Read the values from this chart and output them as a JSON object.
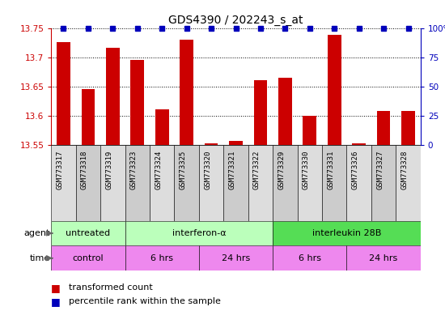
{
  "title": "GDS4390 / 202243_s_at",
  "samples": [
    "GSM773317",
    "GSM773318",
    "GSM773319",
    "GSM773323",
    "GSM773324",
    "GSM773325",
    "GSM773320",
    "GSM773321",
    "GSM773322",
    "GSM773329",
    "GSM773330",
    "GSM773331",
    "GSM773326",
    "GSM773327",
    "GSM773328"
  ],
  "red_values": [
    13.726,
    13.645,
    13.716,
    13.695,
    13.61,
    13.73,
    13.552,
    13.557,
    13.66,
    13.665,
    13.6,
    13.738,
    13.552,
    13.608,
    13.608
  ],
  "blue_values": [
    100,
    100,
    100,
    100,
    100,
    100,
    100,
    100,
    100,
    100,
    100,
    100,
    100,
    100,
    100
  ],
  "ylim_left": [
    13.55,
    13.75
  ],
  "ylim_right": [
    0,
    100
  ],
  "yticks_left": [
    13.55,
    13.6,
    13.65,
    13.7,
    13.75
  ],
  "yticks_right": [
    0,
    25,
    50,
    75,
    100
  ],
  "ytick_right_labels": [
    "0",
    "25",
    "50",
    "75",
    "100%"
  ],
  "red_color": "#CC0000",
  "blue_color": "#0000BB",
  "bar_width": 0.55,
  "left_axis_color": "#CC0000",
  "right_axis_color": "#0000BB",
  "agent_groups": [
    {
      "label": "untreated",
      "start": 0,
      "end": 2,
      "color": "#AAFFAA"
    },
    {
      "label": "interferon-α",
      "start": 2,
      "end": 8,
      "color": "#AAFFAA"
    },
    {
      "label": "interleukin 28B",
      "start": 9,
      "end": 14,
      "color": "#55CC55"
    }
  ],
  "time_groups": [
    {
      "label": "control",
      "start": 0,
      "end": 2
    },
    {
      "label": "6 hrs",
      "start": 2,
      "end": 5
    },
    {
      "label": "24 hrs",
      "start": 5,
      "end": 8
    },
    {
      "label": "6 hrs",
      "start": 9,
      "end": 11
    },
    {
      "label": "24 hrs",
      "start": 11,
      "end": 14
    }
  ],
  "agent_color_light": "#BBFFBB",
  "agent_color_dark": "#55DD55",
  "time_color": "#EE88EE",
  "label_fontsize": 8,
  "tick_fontsize": 7.5
}
